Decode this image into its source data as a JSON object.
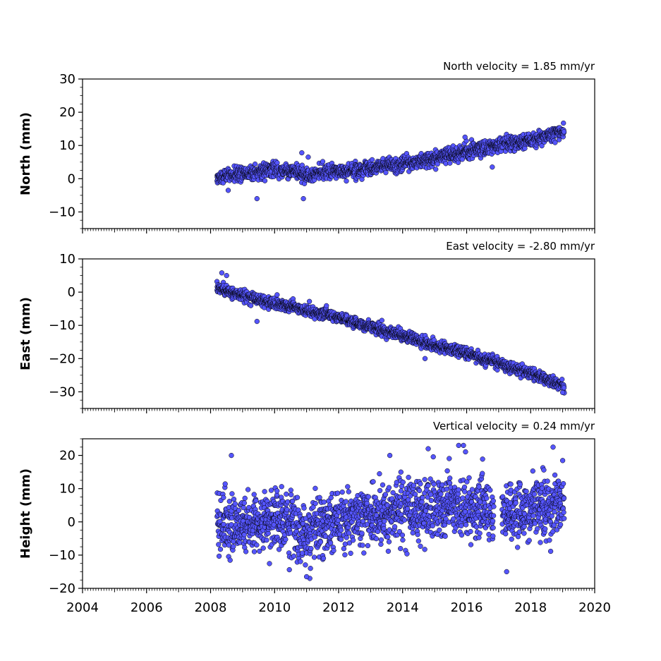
{
  "chart_data": [
    {
      "type": "scatter",
      "id": "north",
      "annotation": "North velocity = 1.85 mm/yr",
      "ylabel": "North (mm)",
      "xlim": [
        2004,
        2020
      ],
      "ylim": [
        -15,
        30
      ],
      "yticks": [
        -10,
        0,
        10,
        20,
        30
      ],
      "ytick_labels": [
        "−10",
        "0",
        "10",
        "20",
        "30"
      ],
      "x_tick_labels_shown": false,
      "series": [
        {
          "velocity_mm_per_yr": 1.85,
          "x_range": [
            2008.2,
            2019.05
          ],
          "trend_points": [
            {
              "x": 2008.2,
              "y": 0.5
            },
            {
              "x": 2009.0,
              "y": 1.6
            },
            {
              "x": 2010.0,
              "y": 3.0
            },
            {
              "x": 2011.0,
              "y": 1.2
            },
            {
              "x": 2012.0,
              "y": 2.2
            },
            {
              "x": 2013.0,
              "y": 3.2
            },
            {
              "x": 2014.0,
              "y": 4.5
            },
            {
              "x": 2015.0,
              "y": 6.0
            },
            {
              "x": 2016.0,
              "y": 8.2
            },
            {
              "x": 2017.0,
              "y": 9.8
            },
            {
              "x": 2018.0,
              "y": 11.5
            },
            {
              "x": 2019.05,
              "y": 14.5
            }
          ],
          "scatter_sd": 1.1,
          "outliers": [
            {
              "x": 2009.45,
              "y": -6.0
            },
            {
              "x": 2010.9,
              "y": -6.0
            },
            {
              "x": 2010.85,
              "y": 7.8
            },
            {
              "x": 2011.05,
              "y": 6.5
            },
            {
              "x": 2015.95,
              "y": 12.5
            },
            {
              "x": 2016.8,
              "y": 3.5
            },
            {
              "x": 2008.55,
              "y": -3.5
            }
          ]
        }
      ]
    },
    {
      "type": "scatter",
      "id": "east",
      "annotation": "East velocity = -2.80 mm/yr",
      "ylabel": "East (mm)",
      "xlim": [
        2004,
        2020
      ],
      "ylim": [
        -35,
        10
      ],
      "yticks": [
        -30,
        -20,
        -10,
        0,
        10
      ],
      "ytick_labels": [
        "−30",
        "−20",
        "−10",
        "0",
        "10"
      ],
      "x_tick_labels_shown": false,
      "series": [
        {
          "velocity_mm_per_yr": -2.8,
          "x_range": [
            2008.2,
            2019.05
          ],
          "trend_points": [
            {
              "x": 2008.2,
              "y": 1.5
            },
            {
              "x": 2009.0,
              "y": -1.0
            },
            {
              "x": 2010.0,
              "y": -3.5
            },
            {
              "x": 2011.0,
              "y": -5.5
            },
            {
              "x": 2012.0,
              "y": -7.5
            },
            {
              "x": 2013.0,
              "y": -10.5
            },
            {
              "x": 2014.0,
              "y": -13.0
            },
            {
              "x": 2015.0,
              "y": -16.0
            },
            {
              "x": 2016.0,
              "y": -18.5
            },
            {
              "x": 2017.0,
              "y": -21.5
            },
            {
              "x": 2018.0,
              "y": -24.5
            },
            {
              "x": 2019.05,
              "y": -28.5
            }
          ],
          "scatter_sd": 0.8,
          "outliers": [
            {
              "x": 2008.35,
              "y": 5.8
            },
            {
              "x": 2008.5,
              "y": 5.0
            },
            {
              "x": 2009.45,
              "y": -8.8
            },
            {
              "x": 2013.35,
              "y": -8.5
            },
            {
              "x": 2014.7,
              "y": -20.0
            },
            {
              "x": 2019.0,
              "y": -30.2
            }
          ]
        }
      ]
    },
    {
      "type": "scatter",
      "id": "height",
      "annotation": "Vertical velocity = 0.24 mm/yr",
      "ylabel": "Height (mm)",
      "xlim": [
        2004,
        2020
      ],
      "ylim": [
        -20,
        25
      ],
      "yticks": [
        -20,
        -10,
        0,
        10,
        20
      ],
      "ytick_labels": [
        "−20",
        "−10",
        "0",
        "10",
        "20"
      ],
      "xticks": [
        2004,
        2006,
        2008,
        2010,
        2012,
        2014,
        2016,
        2018,
        2020
      ],
      "xtick_labels": [
        "2004",
        "2006",
        "2008",
        "2010",
        "2012",
        "2014",
        "2016",
        "2018",
        "2020"
      ],
      "x_tick_labels_shown": true,
      "series": [
        {
          "velocity_mm_per_yr": 0.24,
          "x_range": [
            2008.2,
            2019.05
          ],
          "data_gap": [
            2016.85,
            2017.1
          ],
          "trend_points": [
            {
              "x": 2008.2,
              "y": 1.0
            },
            {
              "x": 2009.0,
              "y": -1.0
            },
            {
              "x": 2010.0,
              "y": 1.0
            },
            {
              "x": 2011.0,
              "y": -4.0
            },
            {
              "x": 2012.0,
              "y": 0.5
            },
            {
              "x": 2013.0,
              "y": 2.5
            },
            {
              "x": 2014.0,
              "y": 4.0
            },
            {
              "x": 2015.0,
              "y": 3.5
            },
            {
              "x": 2016.0,
              "y": 5.0
            },
            {
              "x": 2017.0,
              "y": 3.0
            },
            {
              "x": 2018.0,
              "y": 4.0
            },
            {
              "x": 2019.05,
              "y": 6.0
            }
          ],
          "scatter_sd": 4.5,
          "outliers": [
            {
              "x": 2008.65,
              "y": 20.0
            },
            {
              "x": 2013.6,
              "y": 20.0
            },
            {
              "x": 2015.75,
              "y": 23.0
            },
            {
              "x": 2015.9,
              "y": 23.0
            },
            {
              "x": 2018.7,
              "y": 22.5
            },
            {
              "x": 2011.1,
              "y": -17.0
            },
            {
              "x": 2017.25,
              "y": -15.0
            },
            {
              "x": 2011.0,
              "y": -16.5
            },
            {
              "x": 2014.8,
              "y": 22.0
            }
          ]
        }
      ]
    }
  ],
  "colors": {
    "marker_fill": "#5555ff",
    "marker_edge": "#000000",
    "axes": "#000000",
    "background": "#ffffff"
  }
}
